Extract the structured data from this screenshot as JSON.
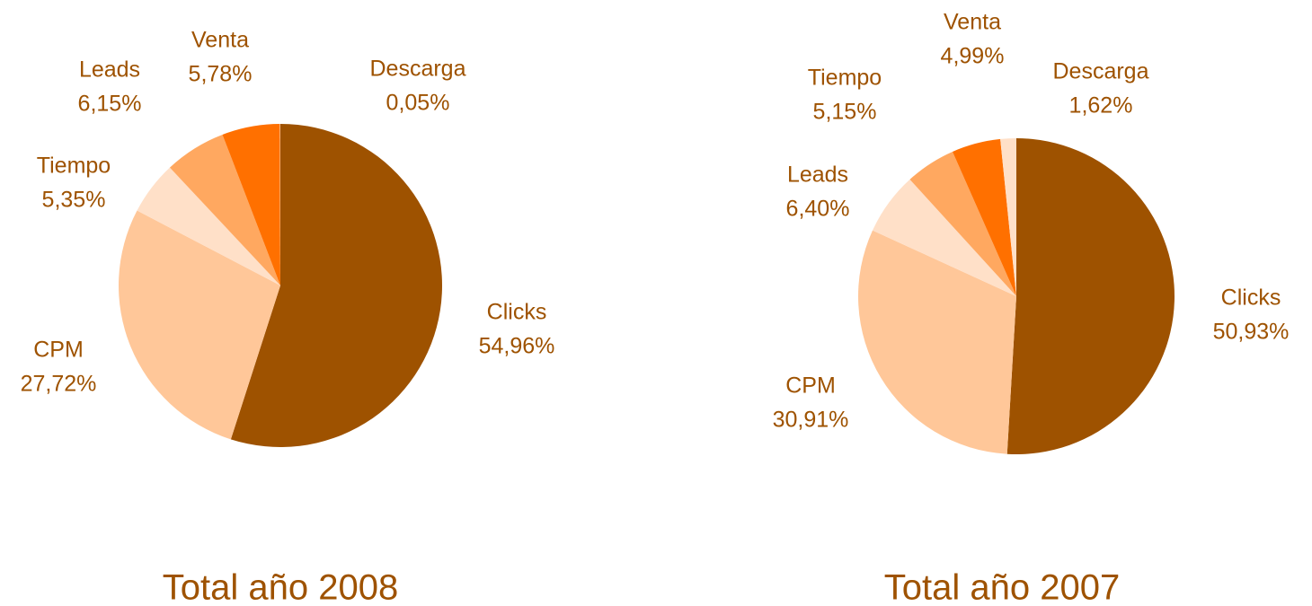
{
  "chart_data": [
    {
      "type": "pie",
      "title": "Total año 2008",
      "categories": [
        "Clicks",
        "CPM",
        "Tiempo",
        "Leads",
        "Venta",
        "Descarga"
      ],
      "values": [
        54.96,
        27.72,
        5.35,
        6.15,
        5.78,
        0.05
      ],
      "value_labels": [
        "54,96%",
        "27,72%",
        "5,35%",
        "6,15%",
        "5,78%",
        "0,05%"
      ],
      "colors": [
        "#9e5200",
        "#ffc799",
        "#ffe0c8",
        "#ffa860",
        "#ff7000",
        "#ffe0c8"
      ]
    },
    {
      "type": "pie",
      "title": "Total año 2007",
      "categories": [
        "Clicks",
        "CPM",
        "Leads",
        "Tiempo",
        "Venta",
        "Descarga"
      ],
      "values": [
        50.93,
        30.91,
        6.4,
        5.15,
        4.99,
        1.62
      ],
      "value_labels": [
        "50,93%",
        "30,91%",
        "6,40%",
        "5,15%",
        "4,99%",
        "1,62%"
      ],
      "colors": [
        "#9e5200",
        "#ffc799",
        "#ffe0c8",
        "#ffa860",
        "#ff7000",
        "#ffe0c8"
      ]
    }
  ]
}
